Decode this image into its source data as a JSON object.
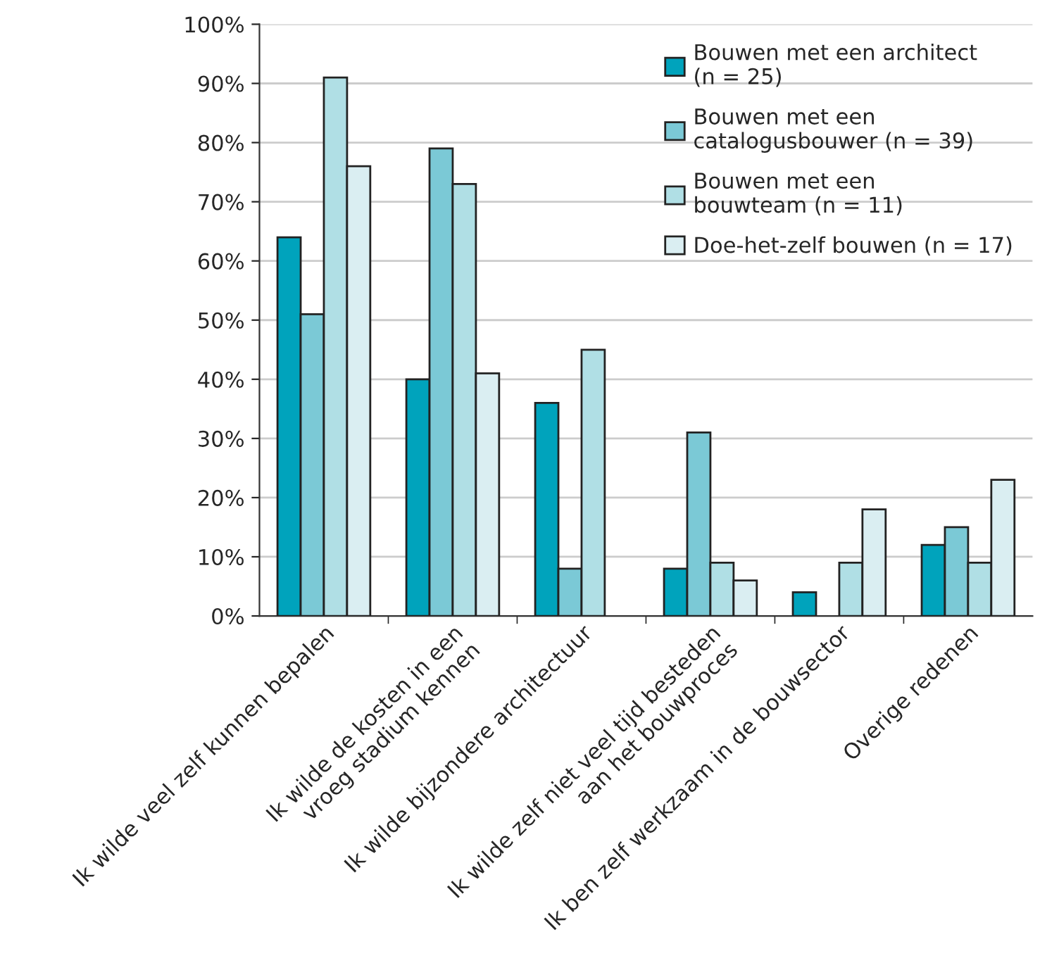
{
  "chart_data": {
    "type": "bar",
    "categories": [
      "Ik wilde veel zelf kunnen bepalen",
      "Ik wilde de kosten in een\nvroeg stadium kennen",
      "Ik wilde bijzondere architectuur",
      "Ik wilde zelf niet veel tijd besteden\naan het bouwproces",
      "Ik ben zelf werkzaam in de bouwsector",
      "Overige redenen"
    ],
    "series": [
      {
        "name": "Bouwen met een architect\n(n = 25)",
        "color": "#00a3bc",
        "values": [
          64,
          40,
          36,
          8,
          4,
          12
        ]
      },
      {
        "name": "Bouwen met een\ncatalogusbouwer (n = 39)",
        "color": "#7bc9d6",
        "values": [
          51,
          79,
          8,
          31,
          null,
          15
        ]
      },
      {
        "name": "Bouwen met een\nbouwteam (n = 11)",
        "color": "#b0dfe5",
        "values": [
          91,
          73,
          45,
          9,
          9,
          9
        ]
      },
      {
        "name": "Doe-het-zelf bouwen (n = 17)",
        "color": "#daeef2",
        "values": [
          76,
          41,
          null,
          6,
          18,
          23
        ]
      }
    ],
    "ylim": [
      0,
      100
    ],
    "yticks": [
      {
        "value": 0,
        "label": "0%"
      },
      {
        "value": 10,
        "label": "10%"
      },
      {
        "value": 20,
        "label": "20%"
      },
      {
        "value": 30,
        "label": "30%"
      },
      {
        "value": 40,
        "label": "40%"
      },
      {
        "value": 50,
        "label": "50%"
      },
      {
        "value": 60,
        "label": "60%"
      },
      {
        "value": 70,
        "label": "70%"
      },
      {
        "value": 80,
        "label": "80%"
      },
      {
        "value": 90,
        "label": "90%"
      },
      {
        "value": 100,
        "label": "100%"
      }
    ],
    "grid": "y",
    "legend": "top right"
  }
}
